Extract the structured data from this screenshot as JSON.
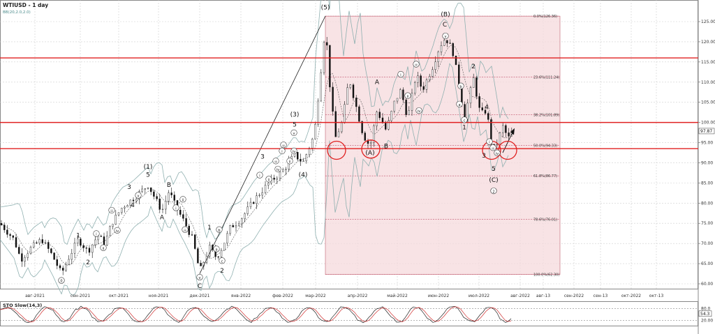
{
  "header": {
    "symbol": "WTIUSD - 1 day",
    "indicator": "BB(20,2.0,2.0)"
  },
  "price_scale": [
    "125.00",
    "120.00",
    "115.00",
    "110.00",
    "105.00",
    "100.00",
    "95.00",
    "90.00",
    "85.00",
    "80.00",
    "75.00",
    "70.00",
    "65.00",
    "60.00"
  ],
  "price_scale_values": [
    125,
    120,
    115,
    110,
    105,
    100,
    95,
    90,
    85,
    80,
    75,
    70,
    65,
    60
  ],
  "current_price": "97.87",
  "current_price_value": 97.87,
  "fib_labels": [
    {
      "text": "0.0%(126.36)",
      "value": 126.36
    },
    {
      "text": "23.6%(111.24)",
      "value": 111.24
    },
    {
      "text": "38.2%(101.89)",
      "value": 101.89
    },
    {
      "text": "50.0%(94.33)",
      "value": 94.33
    },
    {
      "text": "61.8%(86.77)",
      "value": 86.77
    },
    {
      "text": "78.6%(76.01)",
      "value": 76.01
    },
    {
      "text": "100.0%(62.30)",
      "value": 62.3
    }
  ],
  "levels": [
    116.0,
    100.0,
    93.5
  ],
  "time_labels": [
    "авг-2021",
    "сен-2021",
    "окт-2021",
    "ноя-2021",
    "дек-2021",
    "янв-2022",
    "фев-2022",
    "мар-2022",
    "апр-2022",
    "май-2022",
    "июн-2022",
    "июл-2022",
    "авг-2022",
    "авг-13",
    "сен-2022",
    "сен-13",
    "окт-2022",
    "окт-13"
  ],
  "stoch": {
    "title": "STO Slow(14,3)",
    "scale": [
      "80.0",
      "20.00"
    ],
    "scale_values": [
      80,
      20
    ],
    "current": "54.3",
    "current_value": 54.3
  },
  "wave_labels": [
    {
      "text": "0",
      "circled": true,
      "t": 0.088,
      "p": 60.4
    },
    {
      "text": "1",
      "t": 0.112,
      "p": 71.5
    },
    {
      "text": "2",
      "t": 0.126,
      "p": 64.8
    },
    {
      "text": "i",
      "circled": true,
      "t": 0.138,
      "p": 72.0
    },
    {
      "text": "ii",
      "circled": true,
      "t": 0.148,
      "p": 68.5
    },
    {
      "text": "iii",
      "circled": true,
      "t": 0.16,
      "p": 77.8
    },
    {
      "text": "iv",
      "circled": true,
      "t": 0.168,
      "p": 72.8
    },
    {
      "text": "3",
      "t": 0.185,
      "p": 83.5
    },
    {
      "text": "4",
      "t": 0.19,
      "p": 79.0
    },
    {
      "text": "v",
      "circled": true,
      "t": 0.198,
      "p": 81.5
    },
    {
      "text": "5",
      "t": 0.212,
      "p": 86.5
    },
    {
      "text": "(1)",
      "t": 0.212,
      "p": 88.5
    },
    {
      "text": "A",
      "t": 0.232,
      "p": 76.0
    },
    {
      "text": "B",
      "t": 0.242,
      "p": 84.0
    },
    {
      "text": "i",
      "circled": true,
      "t": 0.252,
      "p": 78.4
    },
    {
      "text": "ii",
      "circled": true,
      "t": 0.262,
      "p": 80.5
    },
    {
      "text": "iii",
      "circled": true,
      "t": 0.265,
      "p": 73.0
    },
    {
      "text": "v",
      "circled": true,
      "t": 0.286,
      "p": 61.2
    },
    {
      "text": "C",
      "t": 0.286,
      "p": 59.0
    },
    {
      "text": "1",
      "t": 0.3,
      "p": 73.5
    },
    {
      "text": "b",
      "circled": true,
      "t": 0.314,
      "p": 73.0
    },
    {
      "text": "a",
      "circled": true,
      "t": 0.31,
      "p": 68.2
    },
    {
      "text": "c",
      "circled": true,
      "t": 0.318,
      "p": 65.3
    },
    {
      "text": "2",
      "t": 0.318,
      "p": 62.8
    },
    {
      "text": "3",
      "t": 0.376,
      "p": 91.0
    },
    {
      "text": "i",
      "circled": true,
      "t": 0.372,
      "p": 86.5
    },
    {
      "text": "ii",
      "circled": true,
      "t": 0.385,
      "p": 85.5
    },
    {
      "text": "iii",
      "circled": true,
      "t": 0.395,
      "p": 90.0
    },
    {
      "text": "iv",
      "circled": true,
      "t": 0.398,
      "p": 88.0
    },
    {
      "text": "i",
      "circled": true,
      "t": 0.404,
      "p": 92.5
    },
    {
      "text": "ii",
      "circled": true,
      "t": 0.415,
      "p": 90.0
    },
    {
      "text": "iii",
      "circled": true,
      "t": 0.406,
      "p": 94.0
    },
    {
      "text": "iv",
      "circled": true,
      "t": 0.421,
      "p": 92.5
    },
    {
      "text": "v",
      "circled": true,
      "t": 0.421,
      "p": 97.0
    },
    {
      "text": "5",
      "t": 0.422,
      "p": 99.0
    },
    {
      "text": "(3)",
      "t": 0.422,
      "p": 101.5
    },
    {
      "text": "(4)",
      "t": 0.434,
      "p": 86.5
    },
    {
      "text": "(5)",
      "t": 0.466,
      "p": 128.0
    },
    {
      "text": "i",
      "circled": true,
      "t": 0.466,
      "p": 130.5
    },
    {
      "text": "A",
      "t": 0.54,
      "p": 109.5
    },
    {
      "text": "(A)",
      "t": 0.53,
      "p": 92.0
    },
    {
      "text": "B",
      "t": 0.553,
      "p": 93.6
    },
    {
      "text": "i",
      "circled": true,
      "t": 0.574,
      "p": 111.5
    },
    {
      "text": "ii",
      "circled": true,
      "t": 0.584,
      "p": 106.2
    },
    {
      "text": "iii",
      "circled": true,
      "t": 0.596,
      "p": 114.0
    },
    {
      "text": "iv",
      "circled": true,
      "t": 0.6,
      "p": 102.5
    },
    {
      "text": "v",
      "circled": true,
      "t": 0.638,
      "p": 121.0
    },
    {
      "text": "C",
      "t": 0.637,
      "p": 123.8
    },
    {
      "text": "(B)",
      "t": 0.638,
      "p": 126.3
    },
    {
      "text": "b",
      "circled": true,
      "t": 0.66,
      "p": 108.6
    },
    {
      "text": "a",
      "circled": true,
      "t": 0.658,
      "p": 104.1
    },
    {
      "text": "2",
      "t": 0.678,
      "p": 113.4
    },
    {
      "text": "c",
      "circled": true,
      "t": 0.665,
      "p": 100.2
    },
    {
      "text": "1",
      "t": 0.665,
      "p": 98.3
    },
    {
      "text": "4",
      "t": 0.697,
      "p": 103.3
    },
    {
      "text": "3",
      "t": 0.693,
      "p": 91.3
    },
    {
      "text": "i",
      "circled": true,
      "t": 0.701,
      "p": 94.8
    },
    {
      "text": "iii",
      "circled": true,
      "t": 0.706,
      "p": 93.3
    },
    {
      "text": "iv",
      "circled": true,
      "t": 0.712,
      "p": 92.0
    },
    {
      "text": "5",
      "t": 0.707,
      "p": 88.0
    },
    {
      "text": "(C)",
      "t": 0.707,
      "p": 85.2
    },
    {
      "text": "2",
      "circled": true,
      "t": 0.707,
      "p": 82.6
    }
  ]
}
